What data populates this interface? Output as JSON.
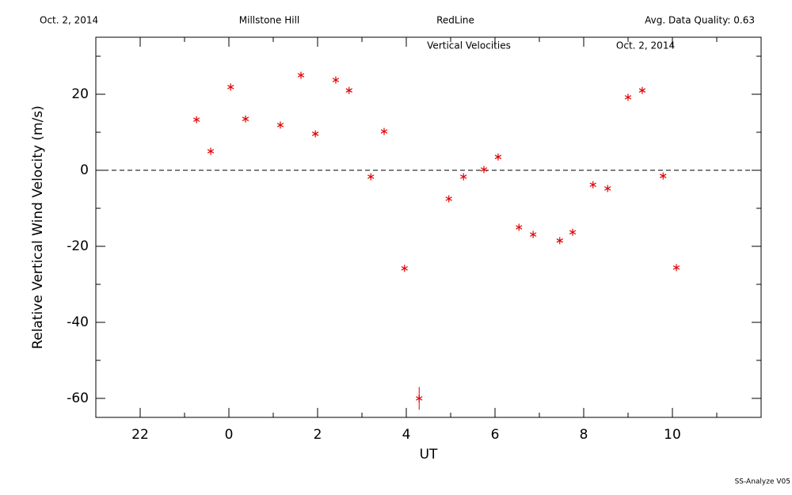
{
  "header": {
    "date": "Oct. 2, 2014",
    "site": "Millstone Hill",
    "filter": "RedLine",
    "quality": "Avg. Data Quality: 0.63"
  },
  "footer": "SS-Analyze V05",
  "chart_data": {
    "type": "scatter",
    "title": "Vertical Velocities",
    "subtitle": "Oct. 2, 2014",
    "xlabel": "UT",
    "ylabel": "Relative Vertical Wind Velocity (m/s)",
    "color": "#e00000",
    "x": [
      -0.73,
      -0.41,
      0.04,
      0.375,
      1.16,
      1.625,
      1.95,
      2.41,
      2.71,
      3.2,
      3.5,
      3.96,
      4.29,
      4.96,
      5.29,
      5.75,
      6.07,
      6.54,
      6.86,
      7.46,
      7.75,
      8.21,
      8.54,
      9.0,
      9.32,
      9.79,
      10.09
    ],
    "values": [
      13.3,
      5,
      21.9,
      13.5,
      11.9,
      25,
      9.6,
      23.75,
      21,
      -1.7,
      10.2,
      -25.8,
      -60,
      -7.5,
      -1.7,
      0.2,
      3.5,
      -15,
      -16.9,
      -18.5,
      -16.3,
      -3.8,
      -4.8,
      19.2,
      21,
      -1.5,
      -25.6
    ],
    "errors": [
      null,
      null,
      null,
      null,
      null,
      null,
      null,
      null,
      null,
      null,
      null,
      null,
      3,
      null,
      null,
      null,
      null,
      null,
      null,
      null,
      null,
      null,
      null,
      null,
      null,
      null,
      null
    ],
    "xlim": [
      -3,
      12
    ],
    "ylim": [
      -65,
      35
    ],
    "xticks": [
      {
        "value": -2,
        "label": "22"
      },
      0,
      2,
      4,
      6,
      8,
      10
    ],
    "xminorticks": [
      -3,
      -1,
      1,
      3,
      5,
      7,
      9,
      11
    ],
    "yticks": [
      -60,
      -40,
      -20,
      0,
      20
    ],
    "yminorticks": [
      -50,
      -30,
      -10,
      10,
      30
    ],
    "reference_line": 0
  }
}
